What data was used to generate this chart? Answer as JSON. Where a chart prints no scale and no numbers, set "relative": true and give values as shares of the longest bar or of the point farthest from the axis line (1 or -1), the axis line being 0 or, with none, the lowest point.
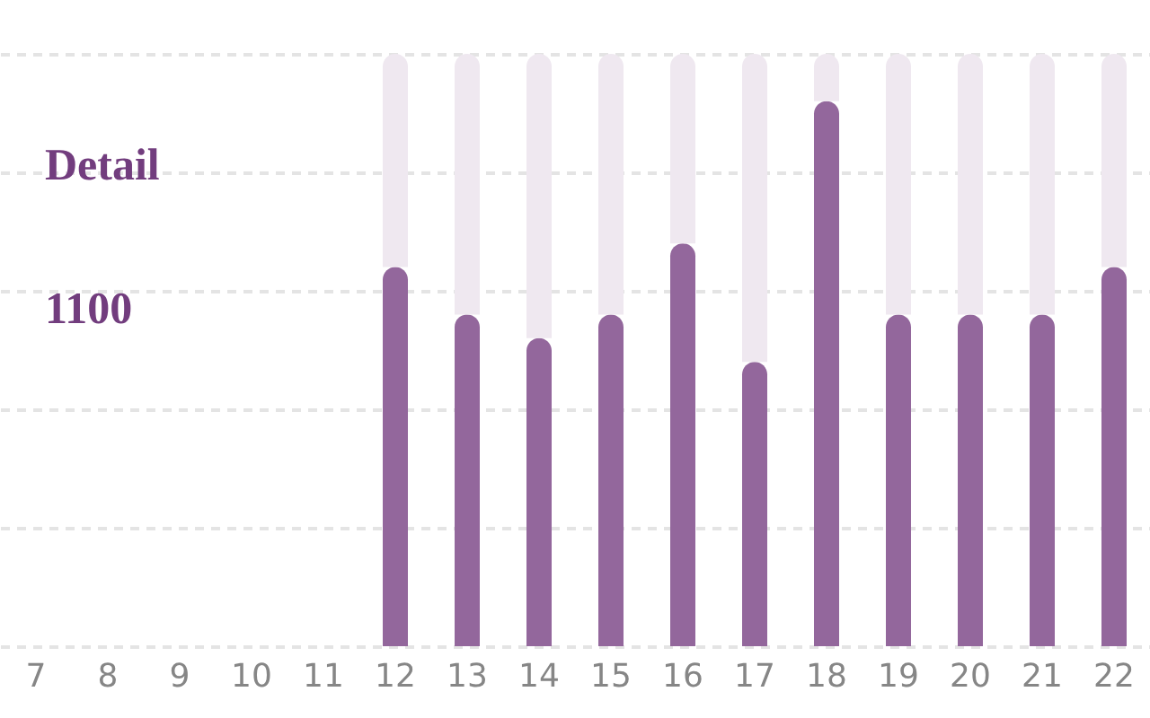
{
  "chart_data": {
    "type": "bar",
    "relative": true,
    "stacked": true,
    "categories": [
      "7",
      "8",
      "9",
      "10",
      "11",
      "12",
      "13",
      "14",
      "15",
      "16",
      "17",
      "18",
      "19",
      "20",
      "21",
      "22"
    ],
    "series": [
      {
        "color": "#93679c",
        "values": [
          null,
          null,
          null,
          null,
          null,
          0.64,
          0.56,
          0.52,
          0.56,
          0.68,
          0.48,
          0.92,
          0.56,
          0.56,
          0.56,
          0.64
        ]
      },
      {
        "color": "#efe8f0",
        "values": [
          null,
          null,
          null,
          null,
          null,
          0.36,
          0.44,
          0.48,
          0.44,
          0.32,
          0.52,
          0.08,
          0.44,
          0.44,
          0.44,
          0.36
        ]
      }
    ],
    "grid": "y",
    "annotations": [
      "Detail",
      "1100"
    ]
  }
}
